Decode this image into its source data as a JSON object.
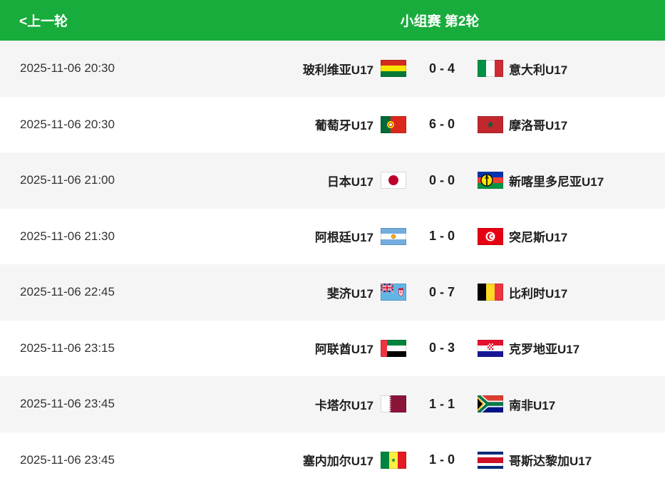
{
  "header": {
    "back_label": "<上一轮",
    "title": "小组赛 第2轮"
  },
  "colors": {
    "header_bg": "#18ac3c",
    "header_text": "#ffffff",
    "row_alt_bg": "#f5f5f5",
    "row_bg": "#ffffff",
    "time_text": "#333333",
    "team_text": "#1f1f1f"
  },
  "matches": [
    {
      "datetime": "2025-11-06 20:30",
      "home": {
        "name": "玻利维亚U17",
        "flag": "bolivia"
      },
      "home_score": 0,
      "away_score": 4,
      "score_text": "0 - 4",
      "away": {
        "name": "意大利U17",
        "flag": "italy"
      }
    },
    {
      "datetime": "2025-11-06 20:30",
      "home": {
        "name": "葡萄牙U17",
        "flag": "portugal"
      },
      "home_score": 6,
      "away_score": 0,
      "score_text": "6 - 0",
      "away": {
        "name": "摩洛哥U17",
        "flag": "morocco"
      }
    },
    {
      "datetime": "2025-11-06 21:00",
      "home": {
        "name": "日本U17",
        "flag": "japan"
      },
      "home_score": 0,
      "away_score": 0,
      "score_text": "0 - 0",
      "away": {
        "name": "新喀里多尼亚U17",
        "flag": "new-caledonia"
      }
    },
    {
      "datetime": "2025-11-06 21:30",
      "home": {
        "name": "阿根廷U17",
        "flag": "argentina"
      },
      "home_score": 1,
      "away_score": 0,
      "score_text": "1 - 0",
      "away": {
        "name": "突尼斯U17",
        "flag": "tunisia"
      }
    },
    {
      "datetime": "2025-11-06 22:45",
      "home": {
        "name": "斐济U17",
        "flag": "fiji"
      },
      "home_score": 0,
      "away_score": 7,
      "score_text": "0 - 7",
      "away": {
        "name": "比利时U17",
        "flag": "belgium"
      }
    },
    {
      "datetime": "2025-11-06 23:15",
      "home": {
        "name": "阿联酋U17",
        "flag": "uae"
      },
      "home_score": 0,
      "away_score": 3,
      "score_text": "0 - 3",
      "away": {
        "name": "克罗地亚U17",
        "flag": "croatia"
      }
    },
    {
      "datetime": "2025-11-06 23:45",
      "home": {
        "name": "卡塔尔U17",
        "flag": "qatar"
      },
      "home_score": 1,
      "away_score": 1,
      "score_text": "1 - 1",
      "away": {
        "name": "南非U17",
        "flag": "south-africa"
      }
    },
    {
      "datetime": "2025-11-06 23:45",
      "home": {
        "name": "塞内加尔U17",
        "flag": "senegal"
      },
      "home_score": 1,
      "away_score": 0,
      "score_text": "1 - 0",
      "away": {
        "name": "哥斯达黎加U17",
        "flag": "costa-rica"
      }
    }
  ]
}
